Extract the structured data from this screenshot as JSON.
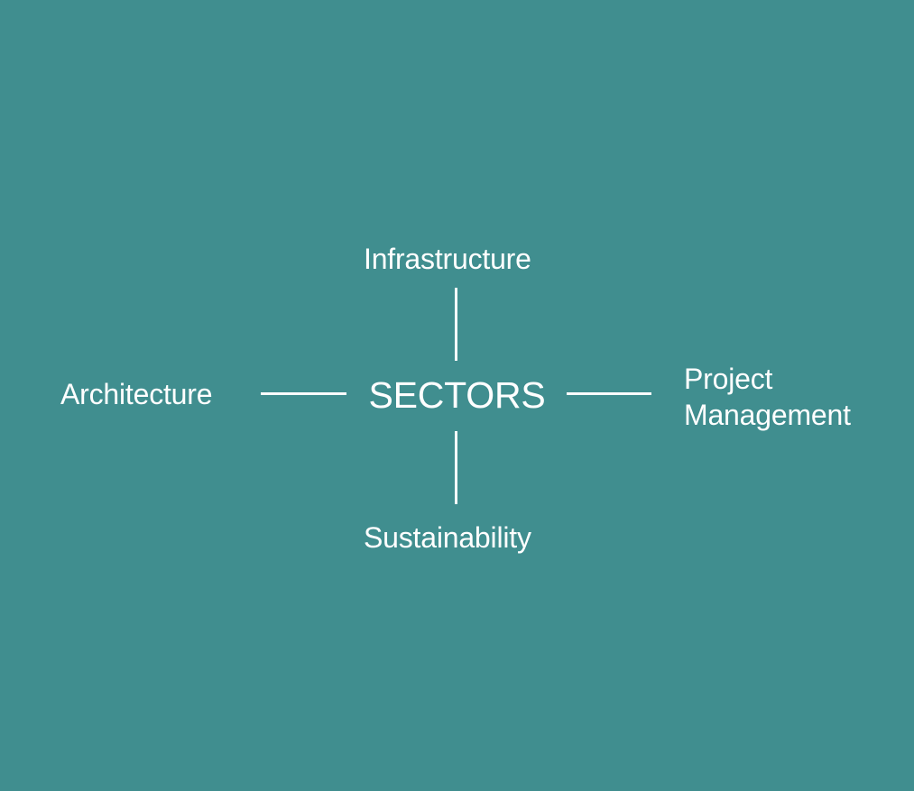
{
  "diagram": {
    "center": "SECTORS",
    "nodes": {
      "top": "Infrastructure",
      "bottom": "Sustainability",
      "left": "Architecture",
      "right_line1": "Project",
      "right_line2": "Management"
    }
  },
  "colors": {
    "background": "#408e8f",
    "foreground": "#ffffff"
  }
}
